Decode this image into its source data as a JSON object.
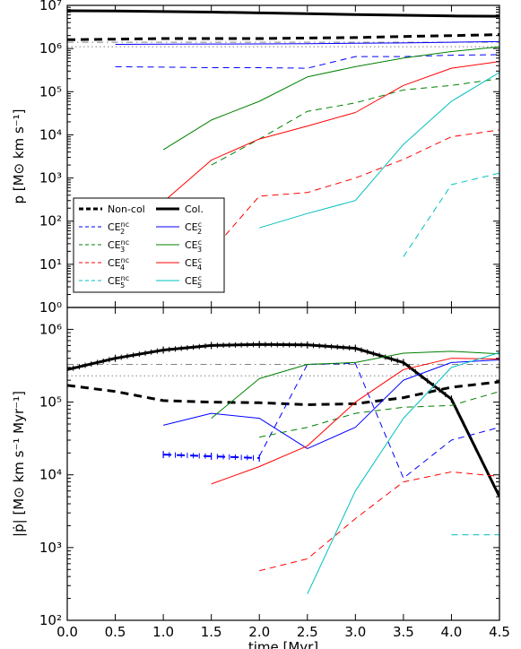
{
  "chart_data": [
    {
      "type": "line",
      "panel": "top",
      "ylabel": "p [M⊙ km s⁻¹]",
      "xlabel": "",
      "xlim": [
        0,
        4.5
      ],
      "ylim": [
        1,
        10000000
      ],
      "yscale": "log",
      "grid": false,
      "legend_placement": "bottom-left",
      "ytick_labels": [
        "10⁰",
        "10¹",
        "10²",
        "10³",
        "10⁴",
        "10⁵",
        "10⁶",
        "10⁷"
      ],
      "ytick_values": [
        1,
        10,
        100,
        1000,
        10000,
        100000,
        1000000,
        10000000
      ],
      "series": [
        {
          "name": "Non-col",
          "color": "#000000",
          "dash": "dashed",
          "width": 3,
          "x": [
            0,
            0.5,
            1,
            1.5,
            2,
            2.5,
            3,
            3.5,
            4,
            4.5
          ],
          "y": [
            1600000,
            1650000,
            1700000,
            1700000,
            1700000,
            1750000,
            1800000,
            1900000,
            2000000,
            2100000
          ]
        },
        {
          "name": "Col.",
          "color": "#000000",
          "dash": "solid",
          "width": 3,
          "x": [
            0,
            0.5,
            1,
            1.5,
            2,
            2.5,
            3,
            3.5,
            4,
            4.5
          ],
          "y": [
            7500000,
            7400000,
            7200000,
            7000000,
            6700000,
            6400000,
            6100000,
            5900000,
            5700000,
            5600000
          ]
        },
        {
          "name": "CE2nc",
          "color": "#0000ff",
          "dash": "dashed",
          "width": 1,
          "x": [
            0.5,
            1,
            1.5,
            2,
            2.5,
            3,
            3.5,
            4,
            4.5
          ],
          "y": [
            380000,
            370000,
            360000,
            360000,
            350000,
            650000,
            650000,
            700000,
            720000
          ]
        },
        {
          "name": "CE2c",
          "color": "#0000ff",
          "dash": "solid",
          "width": 1,
          "x": [
            0.5,
            1,
            1.5,
            2,
            2.5,
            3,
            3.5,
            4,
            4.5
          ],
          "y": [
            1250000,
            1260000,
            1270000,
            1280000,
            1300000,
            1320000,
            1350000,
            1400000,
            1450000
          ]
        },
        {
          "name": "CE3nc",
          "color": "#008000",
          "dash": "dashed",
          "width": 1,
          "x": [
            1.5,
            2,
            2.5,
            3,
            3.5,
            4,
            4.5
          ],
          "y": [
            2000,
            8000,
            35000,
            55000,
            110000,
            140000,
            200000
          ]
        },
        {
          "name": "CE3c",
          "color": "#008000",
          "dash": "solid",
          "width": 1,
          "x": [
            1,
            1.5,
            2,
            2.5,
            3,
            3.5,
            4,
            4.5
          ],
          "y": [
            4500,
            22000,
            60000,
            220000,
            380000,
            600000,
            850000,
            1100000
          ]
        },
        {
          "name": "CE4nc",
          "color": "#ff0000",
          "dash": "dashed",
          "width": 1,
          "x": [
            1.5,
            2,
            2.5,
            3,
            3.5,
            4,
            4.5
          ],
          "y": [
            20,
            380,
            460,
            1000,
            2700,
            9000,
            13000
          ]
        },
        {
          "name": "CE4c",
          "color": "#ff0000",
          "dash": "solid",
          "width": 1,
          "x": [
            1,
            1.5,
            2,
            2.5,
            3,
            3.5,
            4,
            4.5
          ],
          "y": [
            280,
            2600,
            8000,
            16000,
            33000,
            140000,
            350000,
            500000
          ]
        },
        {
          "name": "CE5nc",
          "color": "#00bfbf",
          "dash": "dashed",
          "width": 1,
          "x": [
            3.5,
            4,
            4.5
          ],
          "y": [
            15,
            700,
            1300
          ]
        },
        {
          "name": "CE5c",
          "color": "#00bfbf",
          "dash": "solid",
          "width": 1,
          "x": [
            2,
            2.5,
            3,
            3.5,
            4,
            4.5
          ],
          "y": [
            70,
            150,
            300,
            6000,
            60000,
            280000
          ]
        }
      ],
      "reference_lines": [
        {
          "y": 1100000,
          "color": "#808080",
          "style": "dotted"
        },
        {
          "y": 1400000,
          "color": "#808080",
          "style": "dashdot"
        }
      ],
      "legend": [
        {
          "label": "Non-col",
          "color": "#000000",
          "dash": "dashed",
          "width": 3,
          "col": 0,
          "row": 0,
          "script": ""
        },
        {
          "label": "Col.",
          "color": "#000000",
          "dash": "solid",
          "width": 3,
          "col": 1,
          "row": 0,
          "script": ""
        },
        {
          "label": "CE",
          "sub": "2",
          "sup": "nc",
          "color": "#0000ff",
          "dash": "dashed",
          "width": 1,
          "col": 0,
          "row": 1
        },
        {
          "label": "CE",
          "sub": "2",
          "sup": "c",
          "color": "#0000ff",
          "dash": "solid",
          "width": 1,
          "col": 1,
          "row": 1
        },
        {
          "label": "CE",
          "sub": "3",
          "sup": "nc",
          "color": "#008000",
          "dash": "dashed",
          "width": 1,
          "col": 0,
          "row": 2
        },
        {
          "label": "CE",
          "sub": "3",
          "sup": "c",
          "color": "#008000",
          "dash": "solid",
          "width": 1,
          "col": 1,
          "row": 2
        },
        {
          "label": "CE",
          "sub": "4",
          "sup": "nc",
          "color": "#ff0000",
          "dash": "dashed",
          "width": 1,
          "col": 0,
          "row": 3
        },
        {
          "label": "CE",
          "sub": "4",
          "sup": "c",
          "color": "#ff0000",
          "dash": "solid",
          "width": 1,
          "col": 1,
          "row": 3
        },
        {
          "label": "CE",
          "sub": "5",
          "sup": "nc",
          "color": "#00bfbf",
          "dash": "dashed",
          "width": 1,
          "col": 0,
          "row": 4
        },
        {
          "label": "CE",
          "sub": "5",
          "sup": "c",
          "color": "#00bfbf",
          "dash": "solid",
          "width": 1,
          "col": 1,
          "row": 4
        }
      ]
    },
    {
      "type": "line",
      "panel": "bottom",
      "ylabel": "|ṗ| [M⊙ km s⁻¹ Myr⁻¹]",
      "xlabel": "time [Myr]",
      "xlim": [
        0,
        4.5
      ],
      "ylim": [
        100,
        2000000
      ],
      "yscale": "log",
      "grid": false,
      "xtick_labels": [
        "0.0",
        "0.5",
        "1.0",
        "1.5",
        "2.0",
        "2.5",
        "3.0",
        "3.5",
        "4.0",
        "4.5"
      ],
      "xtick_values": [
        0,
        0.5,
        1,
        1.5,
        2,
        2.5,
        3,
        3.5,
        4,
        4.5
      ],
      "ytick_labels": [
        "10²",
        "10³",
        "10⁴",
        "10⁵",
        "10⁶"
      ],
      "ytick_values": [
        100,
        1000,
        10000,
        100000,
        1000000
      ],
      "series": [
        {
          "name": "Non-col",
          "color": "#000000",
          "dash": "dashed",
          "width": 3,
          "x": [
            0,
            0.5,
            1,
            1.5,
            2,
            2.5,
            3,
            3.5,
            4,
            4.5
          ],
          "y": [
            170000,
            140000,
            105000,
            100000,
            98000,
            92000,
            95000,
            115000,
            160000,
            190000
          ]
        },
        {
          "name": "Col.",
          "color": "#000000",
          "dash": "solid",
          "width": 3,
          "markers": true,
          "x": [
            0,
            0.5,
            1,
            1.5,
            2,
            2.5,
            3,
            3.5,
            4,
            4.5
          ],
          "y": [
            280000,
            400000,
            520000,
            600000,
            620000,
            610000,
            550000,
            350000,
            110000,
            5000
          ]
        },
        {
          "name": "CE2nc",
          "color": "#0000ff",
          "dash": "dashed",
          "width": 1,
          "x": [
            2,
            2.5,
            3,
            3.5,
            4,
            4.5
          ],
          "y": [
            18000,
            330000,
            340000,
            9000,
            30000,
            45000
          ]
        },
        {
          "name": "CE2nc-early",
          "color": "#0000ff",
          "dash": "dashed",
          "width": 2,
          "markers": true,
          "x": [
            1,
            1.5,
            2
          ],
          "y": [
            19000,
            18000,
            17000
          ]
        },
        {
          "name": "CE2c",
          "color": "#0000ff",
          "dash": "solid",
          "width": 1,
          "x": [
            1,
            1.5,
            2,
            2.5,
            3,
            3.5,
            4,
            4.5
          ],
          "y": [
            48000,
            70000,
            60000,
            23000,
            45000,
            200000,
            350000,
            380000
          ]
        },
        {
          "name": "CE3nc",
          "color": "#008000",
          "dash": "dashed",
          "width": 1,
          "x": [
            2,
            2.5,
            3,
            3.5,
            4,
            4.5
          ],
          "y": [
            33000,
            45000,
            70000,
            85000,
            90000,
            140000
          ]
        },
        {
          "name": "CE3c",
          "color": "#008000",
          "dash": "solid",
          "width": 1,
          "x": [
            1.5,
            2,
            2.5,
            3,
            3.5,
            4,
            4.5
          ],
          "y": [
            60000,
            210000,
            330000,
            350000,
            470000,
            500000,
            460000
          ]
        },
        {
          "name": "CE4nc",
          "color": "#ff0000",
          "dash": "dashed",
          "width": 1,
          "x": [
            2,
            2.5,
            3,
            3.5,
            4,
            4.5
          ],
          "y": [
            480,
            700,
            2500,
            8000,
            11000,
            9500
          ]
        },
        {
          "name": "CE4c",
          "color": "#ff0000",
          "dash": "solid",
          "width": 1,
          "x": [
            1.5,
            2,
            2.5,
            3,
            3.5,
            4,
            4.5
          ],
          "y": [
            7500,
            13000,
            25000,
            100000,
            280000,
            400000,
            390000
          ]
        },
        {
          "name": "CE5nc",
          "color": "#00bfbf",
          "dash": "dashed",
          "width": 1,
          "x": [
            4,
            4.5
          ],
          "y": [
            1500,
            1500
          ]
        },
        {
          "name": "CE5c",
          "color": "#00bfbf",
          "dash": "solid",
          "width": 1,
          "x": [
            2.5,
            3,
            3.5,
            4,
            4.5
          ],
          "y": [
            230,
            6000,
            60000,
            300000,
            480000
          ]
        }
      ],
      "reference_lines": [
        {
          "y": 230000,
          "color": "#808080",
          "style": "dotted"
        },
        {
          "y": 330000,
          "color": "#808080",
          "style": "dashdot"
        }
      ]
    }
  ]
}
